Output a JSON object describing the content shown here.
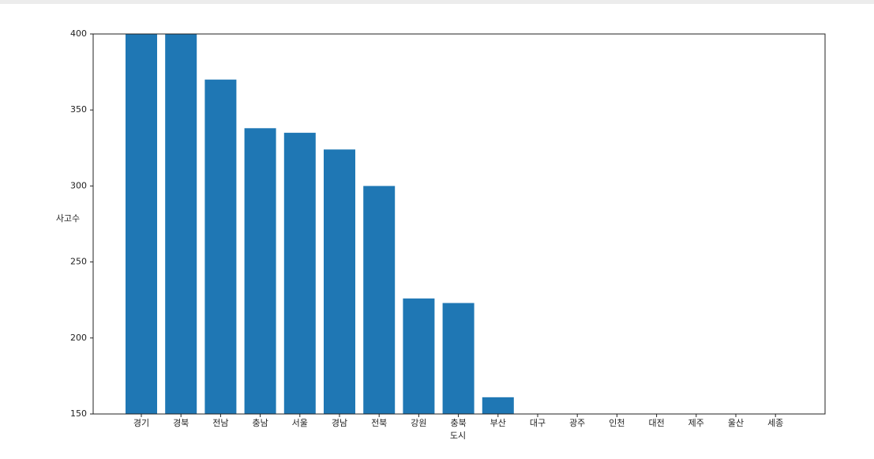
{
  "chart_data": {
    "type": "bar",
    "categories": [
      "경기",
      "경북",
      "전남",
      "충남",
      "서울",
      "경남",
      "전북",
      "강원",
      "충북",
      "부산",
      "대구",
      "광주",
      "인천",
      "대전",
      "제주",
      "울산",
      "세종"
    ],
    "values": [
      400,
      400,
      370,
      338,
      335,
      324,
      300,
      226,
      223,
      161,
      null,
      null,
      null,
      null,
      null,
      null,
      null
    ],
    "color": "#1f77b4",
    "xlabel": "도시",
    "ylabel": "사고수",
    "ylim": [
      150,
      400
    ],
    "yticks": [
      150,
      200,
      250,
      300,
      350,
      400
    ]
  }
}
